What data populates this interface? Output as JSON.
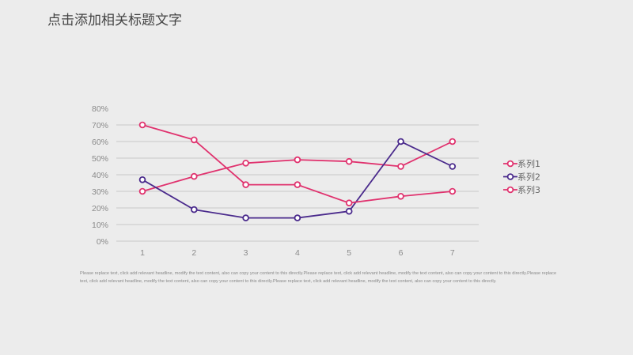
{
  "page": {
    "title": "点击添加相关标题文字",
    "description": "Please replace text, click add relevant headline, modify the text content, also can copy your content to this directly.Please replace text, click add relevant headline, modify the text content, also can copy your content to this directly.Please replace text, click add relevant headline, modify the text content, also can copy your content to this directly.Please replace text, click add relevant headline, modify the text content, also can copy your content to this directly."
  },
  "colors": {
    "series1": "#e0326e",
    "series2": "#4a2a8c",
    "series3": "#e0326e",
    "grid": "#c9c9c9"
  },
  "chart_data": {
    "type": "line",
    "title": "",
    "xlabel": "",
    "ylabel": "",
    "x": [
      "1",
      "2",
      "3",
      "4",
      "5",
      "6",
      "7"
    ],
    "ylim": [
      0,
      80
    ],
    "yticks": [
      0,
      10,
      20,
      30,
      40,
      50,
      60,
      70,
      80
    ],
    "ytick_labels": [
      "0%",
      "10%",
      "20%",
      "30%",
      "40%",
      "50%",
      "60%",
      "70%",
      "80%"
    ],
    "y_unit": "%",
    "grid": "horizontal",
    "legend_position": "right",
    "marker": "hollow-circle",
    "series": [
      {
        "name": "系列1",
        "values": [
          30,
          39,
          47,
          49,
          48,
          45,
          60
        ]
      },
      {
        "name": "系列2",
        "values": [
          37,
          19,
          14,
          14,
          18,
          60,
          45
        ]
      },
      {
        "name": "系列3",
        "values": [
          70,
          61,
          34,
          34,
          23,
          27,
          30
        ]
      }
    ]
  }
}
